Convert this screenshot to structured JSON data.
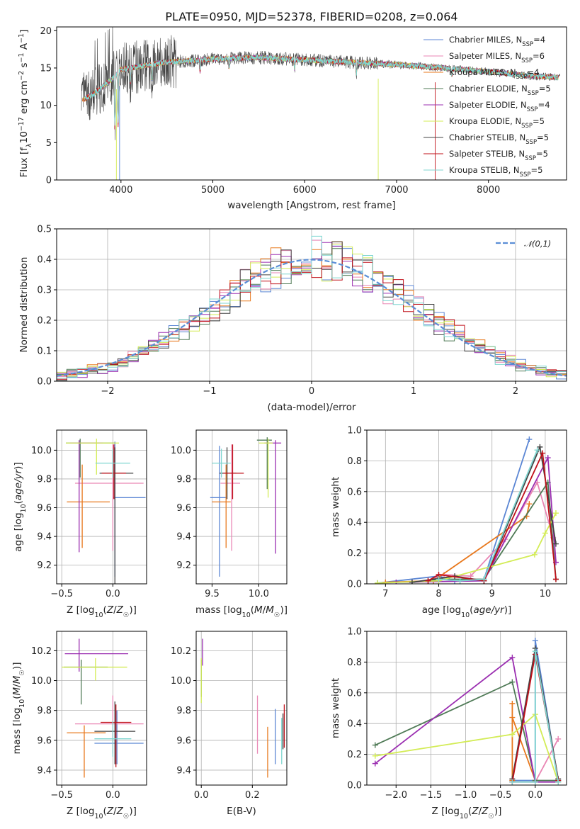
{
  "title": "PLATE=0950, MJD=52378, FIBERID=0208, z=0.064",
  "models": [
    {
      "name": "Chabrier MILES",
      "nssp": "4",
      "color": "#5b86d4"
    },
    {
      "name": "Salpeter MILES",
      "nssp": "6",
      "color": "#e986b4"
    },
    {
      "name": "Kroupa MILES",
      "nssp": "4",
      "color": "#e8781c"
    },
    {
      "name": "Chabrier ELODIE",
      "nssp": "5",
      "color": "#4f7a56"
    },
    {
      "name": "Salpeter ELODIE",
      "nssp": "4",
      "color": "#9b2fb1"
    },
    {
      "name": "Kroupa ELODIE",
      "nssp": "5",
      "color": "#d3ec56"
    },
    {
      "name": "Chabrier STELIB",
      "nssp": "5",
      "color": "#444444"
    },
    {
      "name": "Salpeter STELIB",
      "nssp": "5",
      "color": "#c0101a"
    },
    {
      "name": "Kroupa STELIB",
      "nssp": "5",
      "color": "#7fd6d0"
    }
  ],
  "chart_data": [
    {
      "id": "spectrum",
      "type": "line",
      "xlabel": "wavelength [Angstrom, rest frame]",
      "ylabel": "Flux [f_λ 10^-17 erg cm^-2 s^-1 A^-1]",
      "xlim": [
        3300,
        8850
      ],
      "ylim": [
        0,
        20.5
      ],
      "xticks": [
        4000,
        5000,
        6000,
        7000,
        8000
      ],
      "yticks": [
        0,
        5,
        10,
        15,
        20
      ],
      "legend": "right",
      "grid": false,
      "continuum": {
        "x": [
          3550,
          3700,
          3900,
          4000,
          4200,
          4500,
          4800,
          5000,
          5200,
          5500,
          5800,
          6000,
          6300,
          6600,
          6900,
          7200,
          7500,
          7800,
          8100,
          8400,
          8800
        ],
        "y": [
          10.5,
          11.5,
          13.5,
          14.8,
          15.2,
          15.8,
          16.0,
          16.2,
          16.3,
          16.4,
          16.2,
          16.1,
          15.9,
          15.7,
          15.5,
          15.3,
          15.0,
          14.7,
          14.4,
          14.0,
          13.7
        ]
      }
    },
    {
      "id": "residuals",
      "type": "line",
      "xlabel": "(data-model)/error",
      "ylabel": "Normed distribution",
      "xlim": [
        -2.5,
        2.5
      ],
      "ylim": [
        0,
        0.5
      ],
      "xticks": [
        -2,
        -1,
        0,
        1,
        2
      ],
      "yticks": [
        0.0,
        0.1,
        0.2,
        0.3,
        0.4,
        0.5
      ],
      "grid": true,
      "legend": "top-right",
      "reference_label": "𝒩(0,1)",
      "reference_color": "#5b8ed6"
    },
    {
      "id": "age_vs_z",
      "type": "scatter",
      "xlabel": "Z [log10(Z/Z☉)]",
      "ylabel": "age [log10(age/yr)]",
      "xlim": [
        -0.55,
        0.33
      ],
      "ylim": [
        9.07,
        10.14
      ],
      "xticks": [
        -0.5,
        0.0
      ],
      "yticks": [
        9.2,
        9.4,
        9.6,
        9.8,
        10.0
      ],
      "grid": true,
      "points": [
        {
          "m": 0,
          "x": 0.02,
          "xerr": [
            0.02,
            0.3
          ],
          "y": 9.67,
          "yerr": [
            0.55,
            0.39
          ]
        },
        {
          "m": 1,
          "x": 0.0,
          "xerr": [
            0.37,
            0.3
          ],
          "y": 9.77,
          "yerr": [
            0.47,
            0.27
          ]
        },
        {
          "m": 2,
          "x": -0.3,
          "xerr": [
            0.15,
            0.27
          ],
          "y": 9.64,
          "yerr": [
            0.32,
            0.26
          ]
        },
        {
          "m": 3,
          "x": -0.32,
          "xerr": [
            0.14,
            0.34
          ],
          "y": 10.05,
          "yerr": [
            0.24,
            0.03
          ]
        },
        {
          "m": 4,
          "x": -0.33,
          "xerr": [
            0.09,
            0.23
          ],
          "y": 10.05,
          "yerr": [
            0.76,
            0.02
          ]
        },
        {
          "m": 5,
          "x": -0.16,
          "xerr": [
            0.3,
            0.22
          ],
          "y": 10.05,
          "yerr": [
            0.22,
            0.03
          ]
        },
        {
          "m": 6,
          "x": 0.02,
          "xerr": [
            0.15,
            0.18
          ],
          "y": 9.84,
          "yerr": [
            0.84,
            0.18
          ]
        },
        {
          "m": 7,
          "x": 0.01,
          "xerr": [
            0.12,
            0.12
          ],
          "y": 9.84,
          "yerr": [
            0.18,
            0.2
          ]
        },
        {
          "m": 8,
          "x": 0.0,
          "xerr": [
            0.17,
            0.17
          ],
          "y": 9.91,
          "yerr": [
            0.1,
            0.1
          ]
        }
      ]
    },
    {
      "id": "age_vs_mass",
      "type": "scatter",
      "xlabel": "mass [log10(M/M☉)]",
      "ylabel": "",
      "xlim": [
        9.33,
        10.3
      ],
      "ylim": [
        9.07,
        10.14
      ],
      "xticks": [
        9.5,
        10.0
      ],
      "yticks": [
        9.2,
        9.4,
        9.6,
        9.8,
        10.0
      ],
      "grid": true,
      "points": [
        {
          "m": 0,
          "x": 9.58,
          "xerr": [
            0.1,
            0.08
          ],
          "y": 9.67,
          "yerr": [
            0.55,
            0.36
          ]
        },
        {
          "m": 1,
          "x": 9.71,
          "xerr": [
            0.12,
            0.09
          ],
          "y": 9.77,
          "yerr": [
            0.47,
            0.27
          ]
        },
        {
          "m": 2,
          "x": 9.65,
          "xerr": [
            0.15,
            0.05
          ],
          "y": 9.64,
          "yerr": [
            0.32,
            0.26
          ]
        },
        {
          "m": 3,
          "x": 10.09,
          "xerr": [
            0.11,
            0.05
          ],
          "y": 10.07,
          "yerr": [
            0.34,
            0.02
          ]
        },
        {
          "m": 4,
          "x": 10.18,
          "xerr": [
            0.12,
            0.06
          ],
          "y": 10.05,
          "yerr": [
            0.77,
            0.02
          ]
        },
        {
          "m": 5,
          "x": 10.1,
          "xerr": [
            0.1,
            0.05
          ],
          "y": 10.05,
          "yerr": [
            0.38,
            0.03
          ]
        },
        {
          "m": 6,
          "x": 9.66,
          "xerr": [
            0.08,
            0.1
          ],
          "y": 9.84,
          "yerr": [
            0.18,
            0.18
          ]
        },
        {
          "m": 7,
          "x": 9.72,
          "xerr": [
            0.1,
            0.12
          ],
          "y": 9.84,
          "yerr": [
            0.18,
            0.2
          ]
        },
        {
          "m": 8,
          "x": 9.6,
          "xerr": [
            0.1,
            0.1
          ],
          "y": 9.91,
          "yerr": [
            0.1,
            0.1
          ]
        }
      ]
    },
    {
      "id": "weight_vs_age",
      "type": "line",
      "xlabel": "age [log10(age/yr)]",
      "ylabel": "mass weight",
      "xlim": [
        6.65,
        10.4
      ],
      "ylim": [
        0,
        1.0
      ],
      "xticks": [
        7,
        8,
        9,
        10
      ],
      "yticks": [
        0.0,
        0.2,
        0.4,
        0.6,
        0.8,
        1.0
      ],
      "grid": true,
      "series": [
        {
          "m": 0,
          "x": [
            6.85,
            8.0,
            8.3,
            8.85,
            9.7
          ],
          "y": [
            0.005,
            0.05,
            0.02,
            0.03,
            0.94
          ]
        },
        {
          "m": 1,
          "x": [
            7.8,
            8.1,
            8.6,
            9.25,
            9.85,
            10.15
          ],
          "y": [
            0.02,
            0.06,
            0.05,
            0.29,
            0.66,
            0.3
          ]
        },
        {
          "m": 2,
          "x": [
            7.0,
            7.9,
            9.65,
            9.7
          ],
          "y": [
            0.01,
            0.02,
            0.44,
            0.52
          ]
        },
        {
          "m": 3,
          "x": [
            7.5,
            8.0,
            8.85,
            10.05,
            10.2
          ],
          "y": [
            0.01,
            0.03,
            0.03,
            0.66,
            0.03
          ]
        },
        {
          "m": 4,
          "x": [
            7.2,
            8.85,
            10.05,
            10.2
          ],
          "y": [
            0.01,
            0.02,
            0.82,
            0.14
          ]
        },
        {
          "m": 5,
          "x": [
            6.85,
            8.0,
            9.8,
            10.0,
            10.2
          ],
          "y": [
            0.005,
            0.02,
            0.19,
            0.33,
            0.46
          ]
        },
        {
          "m": 6,
          "x": [
            7.5,
            8.3,
            8.85,
            9.9,
            10.2
          ],
          "y": [
            0.01,
            0.05,
            0.02,
            0.89,
            0.26
          ]
        },
        {
          "m": 7,
          "x": [
            7.8,
            8.0,
            8.85,
            9.95,
            10.2
          ],
          "y": [
            0.02,
            0.06,
            0.02,
            0.85,
            0.03
          ]
        },
        {
          "m": 8,
          "x": [
            8.0,
            8.4,
            8.85,
            9.85
          ],
          "y": [
            0.03,
            0.02,
            0.03,
            0.87
          ]
        }
      ]
    },
    {
      "id": "mass_vs_z",
      "type": "scatter",
      "xlabel": "Z [log10(Z/Z☉)]",
      "ylabel": "mass [log10(M/M☉)]",
      "xlim": [
        -0.55,
        0.33
      ],
      "ylim": [
        9.3,
        10.33
      ],
      "xticks": [
        -0.5,
        0.0
      ],
      "yticks": [
        9.4,
        9.6,
        9.8,
        10.0,
        10.2
      ],
      "grid": true,
      "points": [
        {
          "m": 0,
          "x": 0.04,
          "xerr": [
            0.22,
            0.26
          ],
          "y": 9.58,
          "yerr": [
            0.14,
            0.22
          ]
        },
        {
          "m": 1,
          "x": 0.0,
          "xerr": [
            0.37,
            0.3
          ],
          "y": 9.71,
          "yerr": [
            0.2,
            0.19
          ]
        },
        {
          "m": 2,
          "x": -0.28,
          "xerr": [
            0.17,
            0.21
          ],
          "y": 9.65,
          "yerr": [
            0.3,
            0.05
          ]
        },
        {
          "m": 3,
          "x": -0.31,
          "xerr": [
            0.17,
            0.26
          ],
          "y": 10.09,
          "yerr": [
            0.25,
            0.05
          ]
        },
        {
          "m": 4,
          "x": -0.33,
          "xerr": [
            0.14,
            0.48
          ],
          "y": 10.18,
          "yerr": [
            0.12,
            0.1
          ]
        },
        {
          "m": 5,
          "x": -0.17,
          "xerr": [
            0.33,
            0.31
          ],
          "y": 10.09,
          "yerr": [
            0.09,
            0.06
          ]
        },
        {
          "m": 6,
          "x": 0.02,
          "xerr": [
            0.2,
            0.2
          ],
          "y": 9.66,
          "yerr": [
            0.22,
            0.2
          ]
        },
        {
          "m": 7,
          "x": 0.03,
          "xerr": [
            0.15,
            0.15
          ],
          "y": 9.72,
          "yerr": [
            0.3,
            0.12
          ]
        },
        {
          "m": 8,
          "x": 0.0,
          "xerr": [
            0.18,
            0.18
          ],
          "y": 9.61,
          "yerr": [
            0.12,
            0.12
          ]
        }
      ]
    },
    {
      "id": "mass_vs_ebv",
      "type": "scatter",
      "xlabel": "E(B-V)",
      "ylabel": "",
      "xlim": [
        -0.02,
        0.335
      ],
      "ylim": [
        9.3,
        10.33
      ],
      "xticks": [
        0.0,
        0.2
      ],
      "yticks": [
        9.4,
        9.6,
        9.8,
        10.0,
        10.2
      ],
      "grid": true,
      "points": [
        {
          "m": 0,
          "x": 0.29,
          "y": 9.58,
          "yerr": [
            0.14,
            0.23
          ]
        },
        {
          "m": 1,
          "x": 0.22,
          "y": 9.71,
          "yerr": [
            0.2,
            0.19
          ]
        },
        {
          "m": 2,
          "x": 0.26,
          "y": 9.55,
          "yerr": [
            0.2,
            0.14
          ]
        },
        {
          "m": 3,
          "x": 0.0,
          "y": 10.09,
          "yerr": [
            0.2,
            0.05
          ]
        },
        {
          "m": 4,
          "x": 0.005,
          "y": 10.2,
          "yerr": [
            0.1,
            0.08
          ]
        },
        {
          "m": 5,
          "x": 0.0,
          "y": 10.0,
          "yerr": [
            0.15,
            0.15
          ]
        },
        {
          "m": 6,
          "x": 0.32,
          "y": 9.66,
          "yerr": [
            0.12,
            0.12
          ]
        },
        {
          "m": 7,
          "x": 0.325,
          "y": 9.72,
          "yerr": [
            0.17,
            0.12
          ]
        },
        {
          "m": 8,
          "x": 0.315,
          "y": 9.62,
          "yerr": [
            0.18,
            0.13
          ]
        }
      ]
    },
    {
      "id": "weight_vs_z",
      "type": "line",
      "xlabel": "Z [log10(Z/Z☉)]",
      "ylabel": "mass weight",
      "xlim": [
        -2.42,
        0.45
      ],
      "ylim": [
        0,
        1.0
      ],
      "xticks": [
        -2.0,
        -1.5,
        -1.0,
        -0.5,
        0.0
      ],
      "yticks": [
        0.0,
        0.2,
        0.4,
        0.6,
        0.8,
        1.0
      ],
      "grid": true,
      "series": [
        {
          "m": 0,
          "x": [
            -0.33,
            0.0,
            0.0,
            0.33
          ],
          "y": [
            0.03,
            0.03,
            0.94,
            0.03
          ]
        },
        {
          "m": 1,
          "x": [
            -0.33,
            0.0,
            0.33
          ],
          "y": [
            0.02,
            0.02,
            0.3
          ]
        },
        {
          "m": 2,
          "x": [
            -0.33,
            -0.33,
            -0.33,
            0.0
          ],
          "y": [
            0.03,
            0.53,
            0.44,
            0.03
          ]
        },
        {
          "m": 3,
          "x": [
            -2.3,
            -0.33,
            0.0,
            0.33
          ],
          "y": [
            0.26,
            0.67,
            0.03,
            0.03
          ]
        },
        {
          "m": 4,
          "x": [
            -2.3,
            -0.33,
            0.0,
            0.33
          ],
          "y": [
            0.14,
            0.83,
            0.02,
            0.02
          ]
        },
        {
          "m": 5,
          "x": [
            -2.3,
            -0.33,
            0.0,
            0.33
          ],
          "y": [
            0.19,
            0.33,
            0.46,
            0.02
          ]
        },
        {
          "m": 6,
          "x": [
            -0.33,
            0.0,
            0.33
          ],
          "y": [
            0.04,
            0.89,
            0.04
          ]
        },
        {
          "m": 7,
          "x": [
            -0.33,
            0.0,
            0.33
          ],
          "y": [
            0.02,
            0.85,
            0.03
          ]
        },
        {
          "m": 8,
          "x": [
            -0.33,
            0.0,
            0.0,
            0.33
          ],
          "y": [
            0.02,
            0.02,
            0.87,
            0.02
          ]
        }
      ]
    }
  ]
}
